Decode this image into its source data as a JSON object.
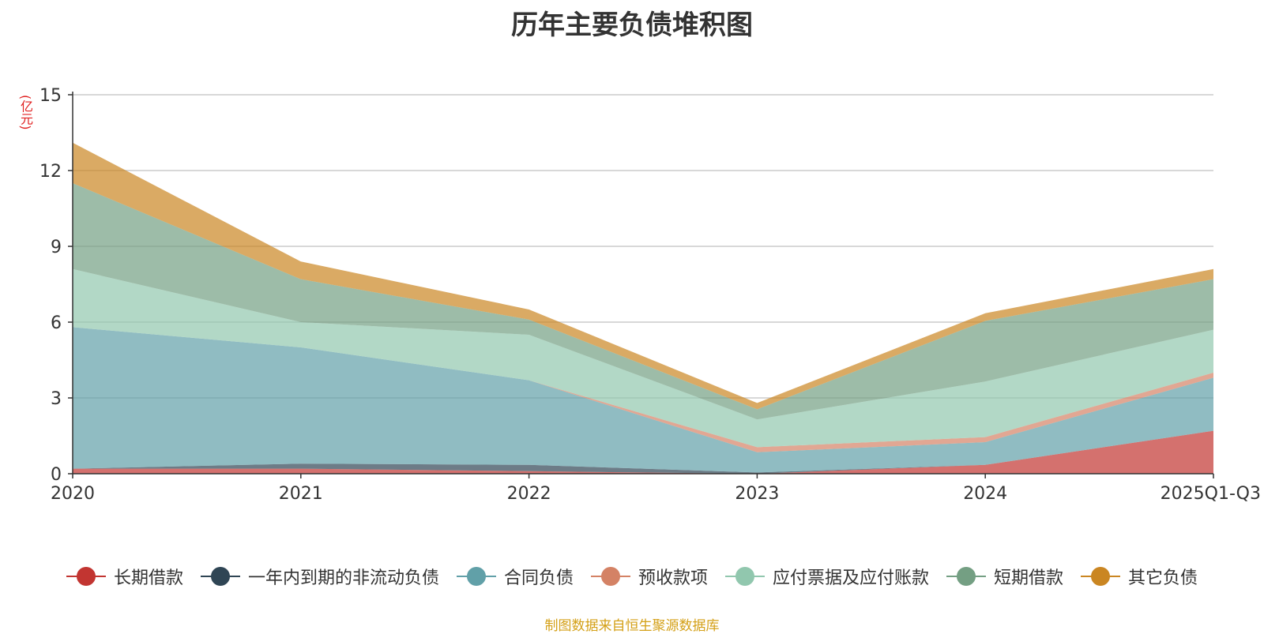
{
  "title": "历年主要负债堆积图",
  "unit_label": "(亿元)",
  "source_note": "制图数据来自恒生聚源数据库",
  "chart_data": {
    "type": "area",
    "stacked": true,
    "title": "历年主要负债堆积图",
    "ylabel": "(亿元)",
    "ylim": [
      0,
      15
    ],
    "yticks": [
      0,
      3,
      6,
      9,
      12,
      15
    ],
    "grid": true,
    "legend_position": "bottom",
    "categories": [
      "2020",
      "2021",
      "2022",
      "2023",
      "2024",
      "2025Q1-Q3"
    ],
    "series": [
      {
        "name": "长期借款",
        "color": "#c23531",
        "values": [
          0.2,
          0.2,
          0.1,
          0.0,
          0.35,
          1.7
        ]
      },
      {
        "name": "一年内到期的非流动负债",
        "color": "#2f4554",
        "values": [
          0.0,
          0.2,
          0.25,
          0.05,
          0.0,
          0.0
        ]
      },
      {
        "name": "合同负债",
        "color": "#61a0a8",
        "values": [
          5.6,
          4.6,
          3.35,
          0.8,
          0.9,
          2.1
        ]
      },
      {
        "name": "预收款项",
        "color": "#d48265",
        "values": [
          0.0,
          0.0,
          0.0,
          0.2,
          0.2,
          0.2
        ]
      },
      {
        "name": "应付票据及应付账款",
        "color": "#91c7ae",
        "values": [
          2.3,
          1.0,
          1.8,
          1.1,
          2.2,
          1.7
        ]
      },
      {
        "name": "短期借款",
        "color": "#749f83",
        "values": [
          3.4,
          1.7,
          0.6,
          0.4,
          2.4,
          2.0
        ]
      },
      {
        "name": "其它负债",
        "color": "#ca8622",
        "values": [
          1.6,
          0.7,
          0.4,
          0.25,
          0.3,
          0.4
        ]
      }
    ]
  }
}
